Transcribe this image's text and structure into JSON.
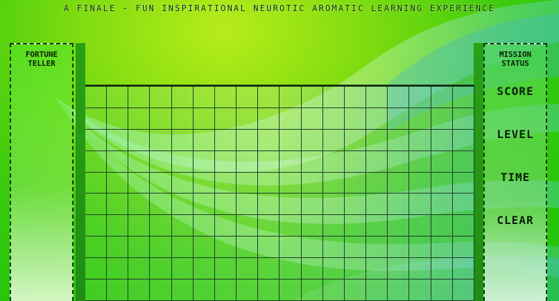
{
  "title": "A Finale - Fun Inspirational Neurotic Aromatic Learning Experience",
  "left_panel": {
    "title": "Fortune Teller"
  },
  "right_panel": {
    "title": "Mission Status",
    "stats": [
      "SCORE",
      "LEVEL",
      "TIME",
      "CLEAR"
    ]
  },
  "board": {
    "columns": 18,
    "rows": 10
  },
  "colors": {
    "background": "#3bcb0e",
    "accent": "#b8ec1a",
    "grid_line": "#1d3a2a"
  }
}
